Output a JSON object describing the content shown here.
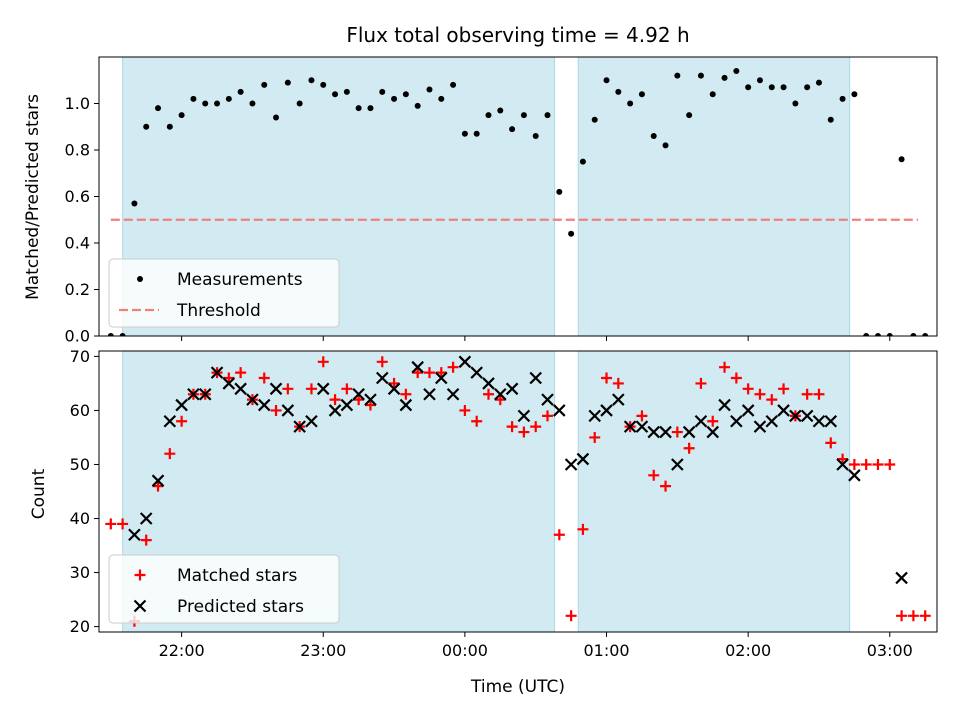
{
  "chart_data": [
    {
      "type": "scatter",
      "title": "Flux total observing time = 4.92 h",
      "ylabel": "Matched/Predicted stars",
      "xlabel": "",
      "ylim": [
        0,
        1.2
      ],
      "yticks": [
        0.0,
        0.2,
        0.4,
        0.6,
        0.8,
        1.0
      ],
      "ytick_labels": [
        "0.0",
        "0.2",
        "0.4",
        "0.6",
        "0.8",
        "1.0"
      ],
      "shaded_spans": [
        [
          "21:35",
          "00:38"
        ],
        [
          "00:48",
          "02:43"
        ]
      ],
      "threshold": {
        "value": 0.5,
        "x_start": "21:30",
        "x_end": "03:12",
        "color": "#f07f7f"
      },
      "legend": {
        "placement": "lower-left",
        "entries": [
          "Measurements",
          "Threshold"
        ]
      },
      "series": [
        {
          "name": "Measurements",
          "marker": "dot",
          "color": "#000000",
          "points": [
            [
              "21:30",
              0.0
            ],
            [
              "21:35",
              0.0
            ],
            [
              "21:40",
              0.57
            ],
            [
              "21:45",
              0.9
            ],
            [
              "21:50",
              0.98
            ],
            [
              "21:55",
              0.9
            ],
            [
              "22:00",
              0.95
            ],
            [
              "22:05",
              1.02
            ],
            [
              "22:10",
              1.0
            ],
            [
              "22:15",
              1.0
            ],
            [
              "22:20",
              1.02
            ],
            [
              "22:25",
              1.05
            ],
            [
              "22:30",
              1.0
            ],
            [
              "22:35",
              1.08
            ],
            [
              "22:40",
              0.94
            ],
            [
              "22:45",
              1.09
            ],
            [
              "22:50",
              1.0
            ],
            [
              "22:55",
              1.1
            ],
            [
              "23:00",
              1.08
            ],
            [
              "23:05",
              1.04
            ],
            [
              "23:10",
              1.05
            ],
            [
              "23:15",
              0.98
            ],
            [
              "23:20",
              0.98
            ],
            [
              "23:25",
              1.05
            ],
            [
              "23:30",
              1.02
            ],
            [
              "23:35",
              1.04
            ],
            [
              "23:40",
              0.99
            ],
            [
              "23:45",
              1.06
            ],
            [
              "23:50",
              1.02
            ],
            [
              "23:55",
              1.08
            ],
            [
              "00:00",
              0.87
            ],
            [
              "00:05",
              0.87
            ],
            [
              "00:10",
              0.95
            ],
            [
              "00:15",
              0.97
            ],
            [
              "00:20",
              0.89
            ],
            [
              "00:25",
              0.95
            ],
            [
              "00:30",
              0.86
            ],
            [
              "00:35",
              0.95
            ],
            [
              "00:40",
              0.62
            ],
            [
              "00:45",
              0.44
            ],
            [
              "00:50",
              0.75
            ],
            [
              "00:55",
              0.93
            ],
            [
              "01:00",
              1.1
            ],
            [
              "01:05",
              1.05
            ],
            [
              "01:10",
              1.0
            ],
            [
              "01:15",
              1.04
            ],
            [
              "01:20",
              0.86
            ],
            [
              "01:25",
              0.82
            ],
            [
              "01:30",
              1.12
            ],
            [
              "01:35",
              0.95
            ],
            [
              "01:40",
              1.12
            ],
            [
              "01:45",
              1.04
            ],
            [
              "01:50",
              1.11
            ],
            [
              "01:55",
              1.14
            ],
            [
              "02:00",
              1.07
            ],
            [
              "02:05",
              1.1
            ],
            [
              "02:10",
              1.07
            ],
            [
              "02:15",
              1.07
            ],
            [
              "02:20",
              1.0
            ],
            [
              "02:25",
              1.07
            ],
            [
              "02:30",
              1.09
            ],
            [
              "02:35",
              0.93
            ],
            [
              "02:40",
              1.02
            ],
            [
              "02:45",
              1.04
            ],
            [
              "02:50",
              0.0
            ],
            [
              "02:55",
              0.0
            ],
            [
              "03:00",
              0.0
            ],
            [
              "03:05",
              0.76
            ],
            [
              "03:10",
              0.0
            ],
            [
              "03:15",
              0.0
            ]
          ]
        }
      ]
    },
    {
      "type": "scatter",
      "title": "",
      "ylabel": "Count",
      "xlabel": "Time (UTC)",
      "ylim": [
        19,
        71
      ],
      "yticks": [
        20,
        30,
        40,
        50,
        60,
        70
      ],
      "ytick_labels": [
        "20",
        "30",
        "40",
        "50",
        "60",
        "70"
      ],
      "xticks": [
        "22:00",
        "23:00",
        "00:00",
        "01:00",
        "02:00",
        "03:00"
      ],
      "xtick_labels": [
        "22:00",
        "23:00",
        "00:00",
        "01:00",
        "02:00",
        "03:00"
      ],
      "xlim": [
        "21:25",
        "03:20"
      ],
      "shaded_spans": [
        [
          "21:35",
          "00:38"
        ],
        [
          "00:48",
          "02:43"
        ]
      ],
      "legend": {
        "placement": "lower-left",
        "entries": [
          "Matched stars",
          "Predicted stars"
        ]
      },
      "series": [
        {
          "name": "Matched stars",
          "marker": "plus",
          "color": "#ff0000",
          "points": [
            [
              "21:30",
              39
            ],
            [
              "21:35",
              39
            ],
            [
              "21:40",
              21
            ],
            [
              "21:45",
              36
            ],
            [
              "21:50",
              46
            ],
            [
              "21:55",
              52
            ],
            [
              "22:00",
              58
            ],
            [
              "22:05",
              63
            ],
            [
              "22:10",
              63
            ],
            [
              "22:15",
              67
            ],
            [
              "22:20",
              66
            ],
            [
              "22:25",
              67
            ],
            [
              "22:30",
              62
            ],
            [
              "22:35",
              66
            ],
            [
              "22:40",
              60
            ],
            [
              "22:45",
              64
            ],
            [
              "22:50",
              57
            ],
            [
              "22:55",
              64
            ],
            [
              "23:00",
              69
            ],
            [
              "23:05",
              62
            ],
            [
              "23:10",
              64
            ],
            [
              "23:15",
              62
            ],
            [
              "23:20",
              61
            ],
            [
              "23:25",
              69
            ],
            [
              "23:30",
              65
            ],
            [
              "23:35",
              63
            ],
            [
              "23:40",
              67
            ],
            [
              "23:45",
              67
            ],
            [
              "23:50",
              67
            ],
            [
              "23:55",
              68
            ],
            [
              "00:00",
              60
            ],
            [
              "00:05",
              58
            ],
            [
              "00:10",
              63
            ],
            [
              "00:15",
              62
            ],
            [
              "00:20",
              57
            ],
            [
              "00:25",
              56
            ],
            [
              "00:30",
              57
            ],
            [
              "00:35",
              59
            ],
            [
              "00:40",
              37
            ],
            [
              "00:45",
              22
            ],
            [
              "00:50",
              38
            ],
            [
              "00:55",
              55
            ],
            [
              "01:00",
              66
            ],
            [
              "01:05",
              65
            ],
            [
              "01:10",
              57
            ],
            [
              "01:15",
              59
            ],
            [
              "01:20",
              48
            ],
            [
              "01:25",
              46
            ],
            [
              "01:30",
              56
            ],
            [
              "01:35",
              53
            ],
            [
              "01:40",
              65
            ],
            [
              "01:45",
              58
            ],
            [
              "01:50",
              68
            ],
            [
              "01:55",
              66
            ],
            [
              "02:00",
              64
            ],
            [
              "02:05",
              63
            ],
            [
              "02:10",
              62
            ],
            [
              "02:15",
              64
            ],
            [
              "02:20",
              59
            ],
            [
              "02:25",
              63
            ],
            [
              "02:30",
              63
            ],
            [
              "02:35",
              54
            ],
            [
              "02:40",
              51
            ],
            [
              "02:45",
              50
            ],
            [
              "02:50",
              50
            ],
            [
              "02:55",
              50
            ],
            [
              "03:00",
              50
            ],
            [
              "03:05",
              22
            ],
            [
              "03:10",
              22
            ],
            [
              "03:15",
              22
            ]
          ]
        },
        {
          "name": "Predicted stars",
          "marker": "x",
          "color": "#000000",
          "points": [
            [
              "21:40",
              37
            ],
            [
              "21:45",
              40
            ],
            [
              "21:50",
              47
            ],
            [
              "21:55",
              58
            ],
            [
              "22:00",
              61
            ],
            [
              "22:05",
              63
            ],
            [
              "22:10",
              63
            ],
            [
              "22:15",
              67
            ],
            [
              "22:20",
              65
            ],
            [
              "22:25",
              64
            ],
            [
              "22:30",
              62
            ],
            [
              "22:35",
              61
            ],
            [
              "22:40",
              64
            ],
            [
              "22:45",
              60
            ],
            [
              "22:50",
              57
            ],
            [
              "22:55",
              58
            ],
            [
              "23:00",
              64
            ],
            [
              "23:05",
              60
            ],
            [
              "23:10",
              61
            ],
            [
              "23:15",
              63
            ],
            [
              "23:20",
              62
            ],
            [
              "23:25",
              66
            ],
            [
              "23:30",
              64
            ],
            [
              "23:35",
              61
            ],
            [
              "23:40",
              68
            ],
            [
              "23:45",
              63
            ],
            [
              "23:50",
              66
            ],
            [
              "23:55",
              63
            ],
            [
              "00:00",
              69
            ],
            [
              "00:05",
              67
            ],
            [
              "00:10",
              65
            ],
            [
              "00:15",
              63
            ],
            [
              "00:20",
              64
            ],
            [
              "00:25",
              59
            ],
            [
              "00:30",
              66
            ],
            [
              "00:35",
              62
            ],
            [
              "00:40",
              60
            ],
            [
              "00:45",
              50
            ],
            [
              "00:50",
              51
            ],
            [
              "00:55",
              59
            ],
            [
              "01:00",
              60
            ],
            [
              "01:05",
              62
            ],
            [
              "01:10",
              57
            ],
            [
              "01:15",
              57
            ],
            [
              "01:20",
              56
            ],
            [
              "01:25",
              56
            ],
            [
              "01:30",
              50
            ],
            [
              "01:35",
              56
            ],
            [
              "01:40",
              58
            ],
            [
              "01:45",
              56
            ],
            [
              "01:50",
              61
            ],
            [
              "01:55",
              58
            ],
            [
              "02:00",
              60
            ],
            [
              "02:05",
              57
            ],
            [
              "02:10",
              58
            ],
            [
              "02:15",
              60
            ],
            [
              "02:20",
              59
            ],
            [
              "02:25",
              59
            ],
            [
              "02:30",
              58
            ],
            [
              "02:35",
              58
            ],
            [
              "02:40",
              50
            ],
            [
              "02:45",
              48
            ],
            [
              "03:05",
              29
            ]
          ]
        }
      ]
    }
  ],
  "colors": {
    "span_fill": "#add8e6",
    "span_edge": "#add8e6",
    "matched": "#ff0000",
    "predicted": "#000000",
    "measure": "#000000",
    "threshold": "#f07f7f"
  }
}
